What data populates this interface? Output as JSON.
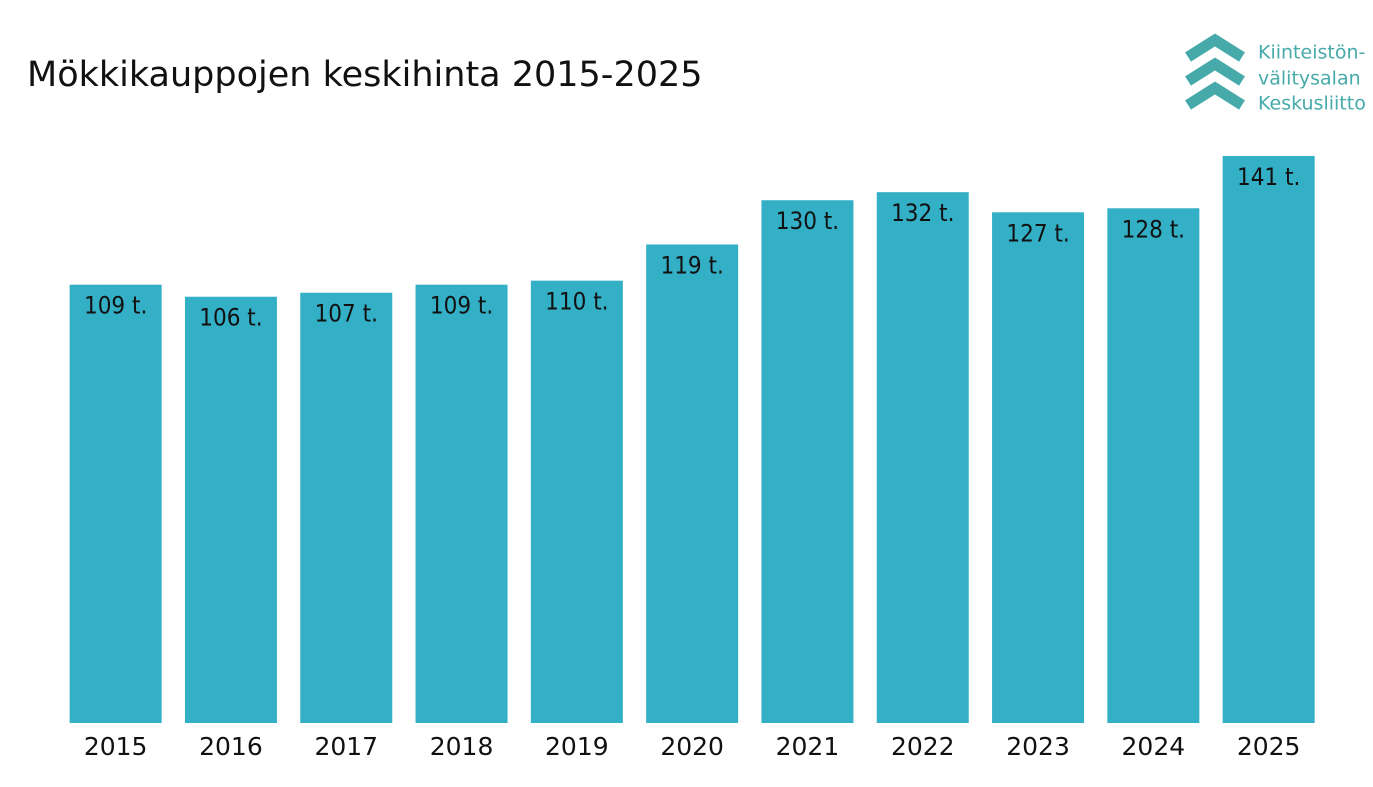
{
  "chart_data": {
    "type": "bar",
    "title": "Mökkikauppojen keskihinta 2015-2025",
    "logo_lines": [
      "Kiinteistön-",
      "välitysalan",
      "Keskusliitto"
    ],
    "categories": [
      "2015",
      "2016",
      "2017",
      "2018",
      "2019",
      "2020",
      "2021",
      "2022",
      "2023",
      "2024",
      "2025"
    ],
    "values": [
      109,
      106,
      107,
      109,
      110,
      119,
      130,
      132,
      127,
      128,
      141
    ],
    "value_labels": [
      "109 t.",
      "106 t.",
      "107 t.",
      "109 t.",
      "110 t.",
      "119 t.",
      "130 t.",
      "132 t.",
      "127 t.",
      "128 t.",
      "141 t."
    ],
    "color": "#33afc6"
  }
}
